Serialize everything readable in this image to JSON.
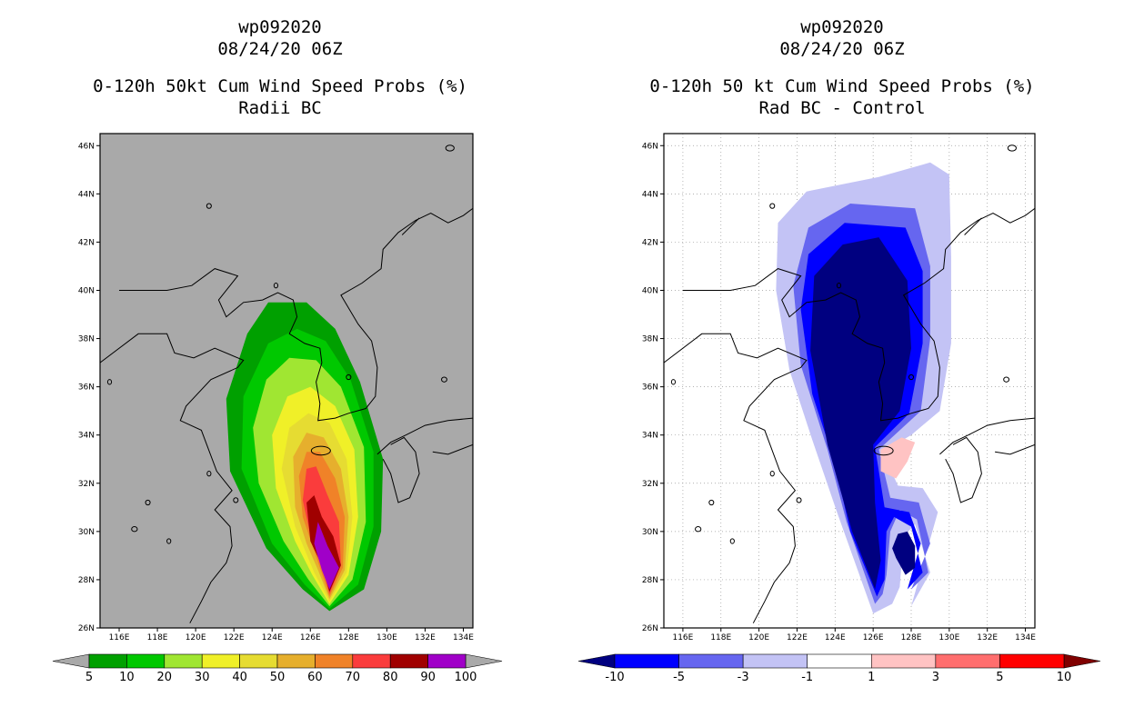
{
  "panels": [
    {
      "id": "left",
      "title_lines": [
        "wp092020",
        "08/24/20 06Z",
        "0-120h 50kt Cum Wind Speed Probs (%)",
        "Radii BC"
      ],
      "background": "#a9a9a9",
      "gridlines": false
    },
    {
      "id": "right",
      "title_lines": [
        "wp092020",
        "08/24/20 06Z",
        "0-120h 50 kt Cum Wind Speed Probs (%)",
        "Rad BC - Control"
      ],
      "background": "#ffffff",
      "gridlines": true
    }
  ],
  "chart_data": [
    {
      "type": "heatmap",
      "title": "0-120h 50kt Cum Wind Speed Probs (%)",
      "subtitle": "Radii BC",
      "storm": "wp092020",
      "date": "08/24/20 06Z",
      "x_ticks": [
        "116E",
        "118E",
        "120E",
        "122E",
        "124E",
        "126E",
        "128E",
        "130E",
        "132E",
        "134E"
      ],
      "y_ticks": [
        "26N",
        "28N",
        "30N",
        "32N",
        "34N",
        "36N",
        "38N",
        "40N",
        "42N",
        "44N",
        "46N"
      ],
      "xlim": [
        115.0,
        134.5
      ],
      "ylim": [
        26.0,
        46.5
      ],
      "colorbar": {
        "labels": [
          "5",
          "10",
          "20",
          "30",
          "40",
          "50",
          "60",
          "70",
          "80",
          "90",
          "100"
        ],
        "colors": [
          "#00a000",
          "#00c800",
          "#a0e632",
          "#f0f028",
          "#e6dc32",
          "#e6af2d",
          "#f08228",
          "#fa3c3c",
          "#a00000",
          "#a000c8"
        ],
        "under_color": "#a9a9a9",
        "over_color": "#a9a9a9"
      },
      "contour_levels": [
        {
          "min": 5,
          "color": "#00a000",
          "poly": [
            [
              127.0,
              26.7
            ],
            [
              128.8,
              27.6
            ],
            [
              129.7,
              30.0
            ],
            [
              129.8,
              33.0
            ],
            [
              128.6,
              36.2
            ],
            [
              127.3,
              38.4
            ],
            [
              125.8,
              39.5
            ],
            [
              123.8,
              39.5
            ],
            [
              122.7,
              38.2
            ],
            [
              121.6,
              35.5
            ],
            [
              121.8,
              32.5
            ],
            [
              123.7,
              29.3
            ],
            [
              125.6,
              27.6
            ]
          ]
        },
        {
          "min": 10,
          "color": "#00c800",
          "poly": [
            [
              127.0,
              26.8
            ],
            [
              128.5,
              27.8
            ],
            [
              129.3,
              30.2
            ],
            [
              129.3,
              33.3
            ],
            [
              128.1,
              36.3
            ],
            [
              126.8,
              37.9
            ],
            [
              125.3,
              38.4
            ],
            [
              123.8,
              37.8
            ],
            [
              122.5,
              35.6
            ],
            [
              122.4,
              32.6
            ],
            [
              124.0,
              29.5
            ],
            [
              125.7,
              27.8
            ]
          ]
        },
        {
          "min": 20,
          "color": "#a0e632",
          "poly": [
            [
              127.0,
              26.9
            ],
            [
              128.2,
              28.0
            ],
            [
              128.9,
              30.4
            ],
            [
              128.8,
              33.5
            ],
            [
              127.6,
              36.0
            ],
            [
              126.3,
              37.1
            ],
            [
              124.9,
              37.2
            ],
            [
              123.7,
              36.3
            ],
            [
              123.0,
              34.3
            ],
            [
              123.3,
              32.0
            ],
            [
              124.6,
              29.6
            ],
            [
              125.9,
              28.0
            ]
          ]
        },
        {
          "min": 30,
          "color": "#f0f028",
          "poly": [
            [
              127.0,
              27.0
            ],
            [
              128.0,
              28.2
            ],
            [
              128.5,
              30.6
            ],
            [
              128.3,
              33.4
            ],
            [
              127.3,
              35.2
            ],
            [
              126.0,
              36.0
            ],
            [
              124.8,
              35.6
            ],
            [
              124.0,
              34.0
            ],
            [
              124.2,
              31.8
            ],
            [
              125.2,
              29.6
            ],
            [
              126.1,
              28.2
            ]
          ]
        },
        {
          "min": 40,
          "color": "#e6dc32",
          "poly": [
            [
              127.0,
              27.1
            ],
            [
              127.9,
              28.3
            ],
            [
              128.2,
              30.6
            ],
            [
              127.9,
              33.0
            ],
            [
              127.0,
              34.5
            ],
            [
              125.9,
              34.9
            ],
            [
              124.9,
              34.3
            ],
            [
              124.5,
              32.6
            ],
            [
              125.2,
              30.2
            ],
            [
              126.2,
              28.3
            ]
          ]
        },
        {
          "min": 50,
          "color": "#e6af2d",
          "poly": [
            [
              127.0,
              27.2
            ],
            [
              127.8,
              28.4
            ],
            [
              128.0,
              30.6
            ],
            [
              127.6,
              32.6
            ],
            [
              126.7,
              33.9
            ],
            [
              125.8,
              34.1
            ],
            [
              125.1,
              33.1
            ],
            [
              125.2,
              31.0
            ],
            [
              125.8,
              29.5
            ],
            [
              126.4,
              28.4
            ]
          ]
        },
        {
          "min": 60,
          "color": "#f08228",
          "poly": [
            [
              127.0,
              27.3
            ],
            [
              127.7,
              28.5
            ],
            [
              127.8,
              30.6
            ],
            [
              127.3,
              32.2
            ],
            [
              126.5,
              33.3
            ],
            [
              125.8,
              33.3
            ],
            [
              125.4,
              32.3
            ],
            [
              125.6,
              30.6
            ],
            [
              126.5,
              28.5
            ]
          ]
        },
        {
          "min": 70,
          "color": "#fa3c3c",
          "poly": [
            [
              127.0,
              27.4
            ],
            [
              127.6,
              28.6
            ],
            [
              127.5,
              30.4
            ],
            [
              126.9,
              31.5
            ],
            [
              126.3,
              32.7
            ],
            [
              125.8,
              32.6
            ],
            [
              125.6,
              31.3
            ],
            [
              126.1,
              29.5
            ],
            [
              126.6,
              28.6
            ]
          ]
        },
        {
          "min": 80,
          "color": "#a00000",
          "poly": [
            [
              127.0,
              27.5
            ],
            [
              127.6,
              28.6
            ],
            [
              127.2,
              29.8
            ],
            [
              126.6,
              30.6
            ],
            [
              126.2,
              31.5
            ],
            [
              125.8,
              31.2
            ],
            [
              126.0,
              29.6
            ],
            [
              126.6,
              28.6
            ]
          ]
        },
        {
          "min": 90,
          "color": "#a000c8",
          "poly": [
            [
              127.0,
              27.6
            ],
            [
              127.5,
              28.5
            ],
            [
              126.9,
              29.4
            ],
            [
              126.4,
              30.4
            ],
            [
              126.2,
              29.5
            ],
            [
              126.6,
              28.4
            ]
          ]
        }
      ]
    },
    {
      "type": "heatmap",
      "title": "0-120h 50 kt Cum Wind Speed Probs (%)",
      "subtitle": "Rad BC - Control",
      "storm": "wp092020",
      "date": "08/24/20 06Z",
      "x_ticks": [
        "116E",
        "118E",
        "120E",
        "122E",
        "124E",
        "126E",
        "128E",
        "130E",
        "132E",
        "134E"
      ],
      "y_ticks": [
        "26N",
        "28N",
        "30N",
        "32N",
        "34N",
        "36N",
        "38N",
        "40N",
        "42N",
        "44N",
        "46N"
      ],
      "xlim": [
        115.0,
        134.5
      ],
      "ylim": [
        26.0,
        46.5
      ],
      "colorbar": {
        "labels": [
          "-10",
          "-5",
          "-3",
          "-1",
          "1",
          "3",
          "5",
          "10"
        ],
        "colors": [
          "#0000ff",
          "#6666f0",
          "#c3c3f5",
          "#ffffff",
          "#ffc3c3",
          "#ff6e6e",
          "#ff0000"
        ],
        "under_color": "#000080",
        "over_color": "#800000"
      },
      "contour_levels": [
        {
          "max": -1,
          "color": "#c3c3f5",
          "poly": [
            [
              126.0,
              26.6
            ],
            [
              127.0,
              27.0
            ],
            [
              127.4,
              27.7
            ],
            [
              127.6,
              29.8
            ],
            [
              128.2,
              30.3
            ],
            [
              129.0,
              28.3
            ],
            [
              128.0,
              26.9
            ],
            [
              129.4,
              30.8
            ],
            [
              128.6,
              31.8
            ],
            [
              127.3,
              31.9
            ],
            [
              126.5,
              33.3
            ],
            [
              128.0,
              34.0
            ],
            [
              129.5,
              35.0
            ],
            [
              130.1,
              37.8
            ],
            [
              130.1,
              41.4
            ],
            [
              130.0,
              44.8
            ],
            [
              129.0,
              45.3
            ],
            [
              126.3,
              44.7
            ],
            [
              122.5,
              44.1
            ],
            [
              121.0,
              42.8
            ],
            [
              120.9,
              40.0
            ],
            [
              121.6,
              36.7
            ],
            [
              122.8,
              33.8
            ],
            [
              124.1,
              30.8
            ]
          ]
        },
        {
          "max": -3,
          "color": "#6666f0",
          "poly": [
            [
              126.1,
              27.0
            ],
            [
              126.5,
              27.4
            ],
            [
              126.7,
              28.2
            ],
            [
              126.9,
              30.0
            ],
            [
              127.4,
              30.9
            ],
            [
              128.3,
              30.5
            ],
            [
              128.9,
              28.3
            ],
            [
              128.0,
              27.6
            ],
            [
              129.0,
              29.5
            ],
            [
              128.4,
              31.2
            ],
            [
              126.9,
              31.4
            ],
            [
              126.3,
              33.4
            ],
            [
              128.5,
              35.0
            ],
            [
              129.0,
              38.0
            ],
            [
              129.0,
              41.0
            ],
            [
              128.2,
              43.4
            ],
            [
              124.8,
              43.6
            ],
            [
              122.6,
              42.6
            ],
            [
              121.8,
              40.2
            ],
            [
              122.2,
              36.9
            ],
            [
              123.6,
              33.4
            ],
            [
              124.6,
              30.4
            ]
          ]
        },
        {
          "max": -5,
          "color": "#0000ff",
          "poly": [
            [
              126.2,
              27.3
            ],
            [
              126.6,
              28.0
            ],
            [
              126.7,
              30.0
            ],
            [
              127.1,
              30.6
            ],
            [
              128.0,
              30.2
            ],
            [
              128.6,
              28.3
            ],
            [
              127.8,
              27.6
            ],
            [
              128.5,
              29.5
            ],
            [
              127.9,
              30.8
            ],
            [
              126.6,
              31.0
            ],
            [
              126.1,
              33.5
            ],
            [
              127.9,
              34.9
            ],
            [
              128.6,
              37.8
            ],
            [
              128.6,
              40.8
            ],
            [
              127.7,
              42.6
            ],
            [
              124.5,
              42.8
            ],
            [
              122.6,
              41.5
            ],
            [
              122.2,
              39.2
            ],
            [
              122.8,
              35.7
            ],
            [
              124.0,
              32.8
            ],
            [
              124.8,
              30.0
            ]
          ]
        },
        {
          "max": -10,
          "color": "#000080",
          "poly": [
            [
              126.1,
              27.6
            ],
            [
              126.4,
              28.8
            ],
            [
              126.1,
              31.2
            ],
            [
              126.0,
              33.6
            ],
            [
              127.4,
              35.0
            ],
            [
              128.0,
              37.6
            ],
            [
              127.8,
              40.4
            ],
            [
              126.3,
              42.2
            ],
            [
              124.4,
              41.9
            ],
            [
              122.9,
              40.6
            ],
            [
              122.7,
              37.5
            ],
            [
              123.6,
              33.6
            ],
            [
              124.9,
              30.0
            ]
          ]
        },
        {
          "max": -10,
          "color": "#000080",
          "poly": [
            [
              127.2,
              28.9
            ],
            [
              127.7,
              28.2
            ],
            [
              128.2,
              28.5
            ],
            [
              128.2,
              29.4
            ],
            [
              127.8,
              30.0
            ],
            [
              127.3,
              29.9
            ],
            [
              127.0,
              29.3
            ]
          ]
        },
        {
          "min": 1,
          "color": "#ffc3c3",
          "poly": [
            [
              126.4,
              32.5
            ],
            [
              127.2,
              32.2
            ],
            [
              127.8,
              32.9
            ],
            [
              128.2,
              33.7
            ],
            [
              127.5,
              33.9
            ],
            [
              126.4,
              33.4
            ]
          ]
        }
      ]
    }
  ]
}
